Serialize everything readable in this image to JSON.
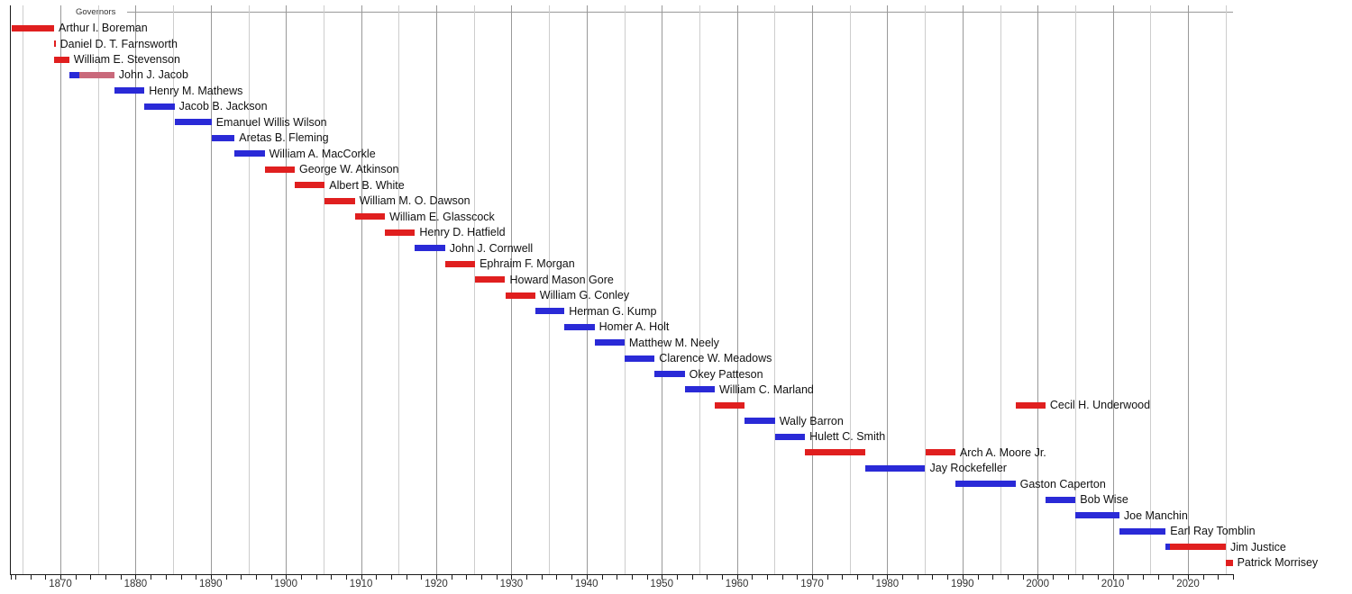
{
  "chart_data": {
    "type": "bar",
    "variant": "gantt-timeline",
    "title": "Governors",
    "xlabel": "",
    "ylabel": "",
    "legend": "none",
    "grid": "vertical, every 5 years (decade lines darker)",
    "axis": {
      "year_min": 1863.4,
      "year_max": 2026.0,
      "grid_step_years": 5,
      "minor_tick_step_years": 2,
      "tick_labels": [
        "1870",
        "1880",
        "1890",
        "1900",
        "1910",
        "1920",
        "1930",
        "1940",
        "1950",
        "1960",
        "1970",
        "1980",
        "1990",
        "2000",
        "2010",
        "2020"
      ]
    },
    "party_colors": {
      "Republican": "#e01f1f",
      "Democrat": "#2a2ad7",
      "Independent": "#c9697b"
    },
    "rows": [
      {
        "name": "Arthur I. Boreman",
        "terms": [
          {
            "start": 1863.47,
            "end": 1869.15,
            "party": "Republican"
          }
        ]
      },
      {
        "name": "Daniel D. T. Farnsworth",
        "terms": [
          {
            "start": 1869.15,
            "end": 1869.35,
            "party": "Republican"
          }
        ]
      },
      {
        "name": "William E. Stevenson",
        "terms": [
          {
            "start": 1869.17,
            "end": 1871.17,
            "party": "Republican"
          }
        ]
      },
      {
        "name": "John J. Jacob",
        "terms": [
          {
            "start": 1871.17,
            "end": 1872.5,
            "party": "Democrat"
          },
          {
            "start": 1872.5,
            "end": 1877.17,
            "party": "Independent"
          }
        ]
      },
      {
        "name": "Henry M. Mathews",
        "terms": [
          {
            "start": 1877.17,
            "end": 1881.17,
            "party": "Democrat"
          }
        ]
      },
      {
        "name": "Jacob B. Jackson",
        "terms": [
          {
            "start": 1881.17,
            "end": 1885.17,
            "party": "Democrat"
          }
        ]
      },
      {
        "name": "Emanuel Willis Wilson",
        "terms": [
          {
            "start": 1885.17,
            "end": 1890.1,
            "party": "Democrat"
          }
        ]
      },
      {
        "name": "Aretas B. Fleming",
        "terms": [
          {
            "start": 1890.1,
            "end": 1893.17,
            "party": "Democrat"
          }
        ]
      },
      {
        "name": "William A. MacCorkle",
        "terms": [
          {
            "start": 1893.17,
            "end": 1897.17,
            "party": "Democrat"
          }
        ]
      },
      {
        "name": "George W. Atkinson",
        "terms": [
          {
            "start": 1897.17,
            "end": 1901.17,
            "party": "Republican"
          }
        ]
      },
      {
        "name": "Albert B. White",
        "terms": [
          {
            "start": 1901.17,
            "end": 1905.17,
            "party": "Republican"
          }
        ]
      },
      {
        "name": "William M. O. Dawson",
        "terms": [
          {
            "start": 1905.17,
            "end": 1909.17,
            "party": "Republican"
          }
        ]
      },
      {
        "name": "William E. Glasscock",
        "terms": [
          {
            "start": 1909.17,
            "end": 1913.17,
            "party": "Republican"
          }
        ]
      },
      {
        "name": "Henry D. Hatfield",
        "terms": [
          {
            "start": 1913.17,
            "end": 1917.17,
            "party": "Republican"
          }
        ]
      },
      {
        "name": "John J. Cornwell",
        "terms": [
          {
            "start": 1917.17,
            "end": 1921.17,
            "party": "Democrat"
          }
        ]
      },
      {
        "name": "Ephraim F. Morgan",
        "terms": [
          {
            "start": 1921.17,
            "end": 1925.17,
            "party": "Republican"
          }
        ]
      },
      {
        "name": "Howard Mason Gore",
        "terms": [
          {
            "start": 1925.17,
            "end": 1929.17,
            "party": "Republican"
          }
        ]
      },
      {
        "name": "William G. Conley",
        "terms": [
          {
            "start": 1929.17,
            "end": 1933.17,
            "party": "Republican"
          }
        ]
      },
      {
        "name": "Herman G. Kump",
        "terms": [
          {
            "start": 1933.17,
            "end": 1937.05,
            "party": "Democrat"
          }
        ]
      },
      {
        "name": "Homer A. Holt",
        "terms": [
          {
            "start": 1937.05,
            "end": 1941.05,
            "party": "Democrat"
          }
        ]
      },
      {
        "name": "Matthew M. Neely",
        "terms": [
          {
            "start": 1941.05,
            "end": 1945.05,
            "party": "Democrat"
          }
        ]
      },
      {
        "name": "Clarence W. Meadows",
        "terms": [
          {
            "start": 1945.05,
            "end": 1949.05,
            "party": "Democrat"
          }
        ]
      },
      {
        "name": "Okey Patteson",
        "terms": [
          {
            "start": 1949.05,
            "end": 1953.05,
            "party": "Democrat"
          }
        ]
      },
      {
        "name": "William C. Marland",
        "terms": [
          {
            "start": 1953.05,
            "end": 1957.05,
            "party": "Democrat"
          }
        ]
      },
      {
        "name": "Cecil H. Underwood",
        "terms": [
          {
            "start": 1957.05,
            "end": 1961.05,
            "party": "Republican"
          },
          {
            "start": 1997.05,
            "end": 2001.05,
            "party": "Republican"
          }
        ]
      },
      {
        "name": "Wally Barron",
        "terms": [
          {
            "start": 1961.05,
            "end": 1965.05,
            "party": "Democrat"
          }
        ]
      },
      {
        "name": "Hulett C. Smith",
        "terms": [
          {
            "start": 1965.05,
            "end": 1969.05,
            "party": "Democrat"
          }
        ]
      },
      {
        "name": "Arch A. Moore Jr.",
        "terms": [
          {
            "start": 1969.05,
            "end": 1977.05,
            "party": "Republican"
          },
          {
            "start": 1985.05,
            "end": 1989.05,
            "party": "Republican"
          }
        ]
      },
      {
        "name": "Jay Rockefeller",
        "terms": [
          {
            "start": 1977.05,
            "end": 1985.05,
            "party": "Democrat"
          }
        ]
      },
      {
        "name": "Gaston Caperton",
        "terms": [
          {
            "start": 1989.05,
            "end": 1997.05,
            "party": "Democrat"
          }
        ]
      },
      {
        "name": "Bob Wise",
        "terms": [
          {
            "start": 2001.05,
            "end": 2005.05,
            "party": "Democrat"
          }
        ]
      },
      {
        "name": "Joe Manchin",
        "terms": [
          {
            "start": 2005.05,
            "end": 2010.88,
            "party": "Democrat"
          }
        ]
      },
      {
        "name": "Earl Ray Tomblin",
        "terms": [
          {
            "start": 2010.88,
            "end": 2017.04,
            "party": "Democrat"
          }
        ]
      },
      {
        "name": "Jim Justice",
        "terms": [
          {
            "start": 2017.04,
            "end": 2017.6,
            "party": "Democrat"
          },
          {
            "start": 2017.6,
            "end": 2025.04,
            "party": "Republican"
          }
        ]
      },
      {
        "name": "Patrick Morrisey",
        "terms": [
          {
            "start": 2025.04,
            "end": 2025.95,
            "party": "Republican"
          }
        ]
      }
    ]
  }
}
